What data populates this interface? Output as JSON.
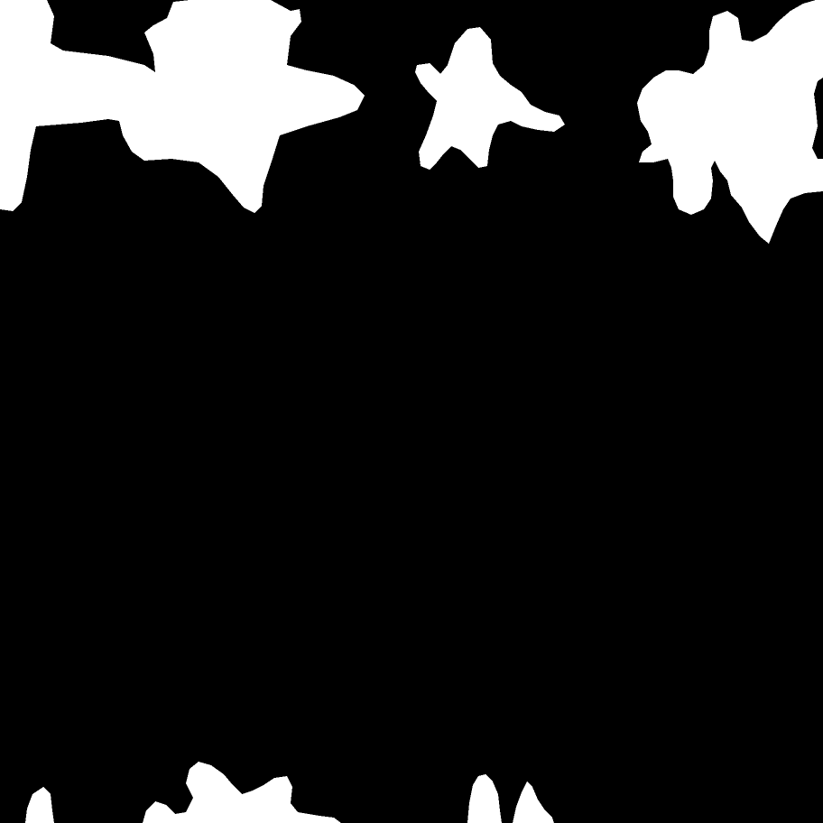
{
  "colors": {
    "background": "#000000",
    "foreground": "#ffffff"
  },
  "regions": [
    {
      "name": "top-left-star-blob"
    },
    {
      "name": "top-center-star-blob"
    },
    {
      "name": "top-right-star-blob"
    },
    {
      "name": "bottom-left-fragment-blob"
    },
    {
      "name": "bottom-center-left-fragment-blob"
    },
    {
      "name": "bottom-center-fragment-blob"
    },
    {
      "name": "bottom-center-right-fragment-blob"
    }
  ]
}
